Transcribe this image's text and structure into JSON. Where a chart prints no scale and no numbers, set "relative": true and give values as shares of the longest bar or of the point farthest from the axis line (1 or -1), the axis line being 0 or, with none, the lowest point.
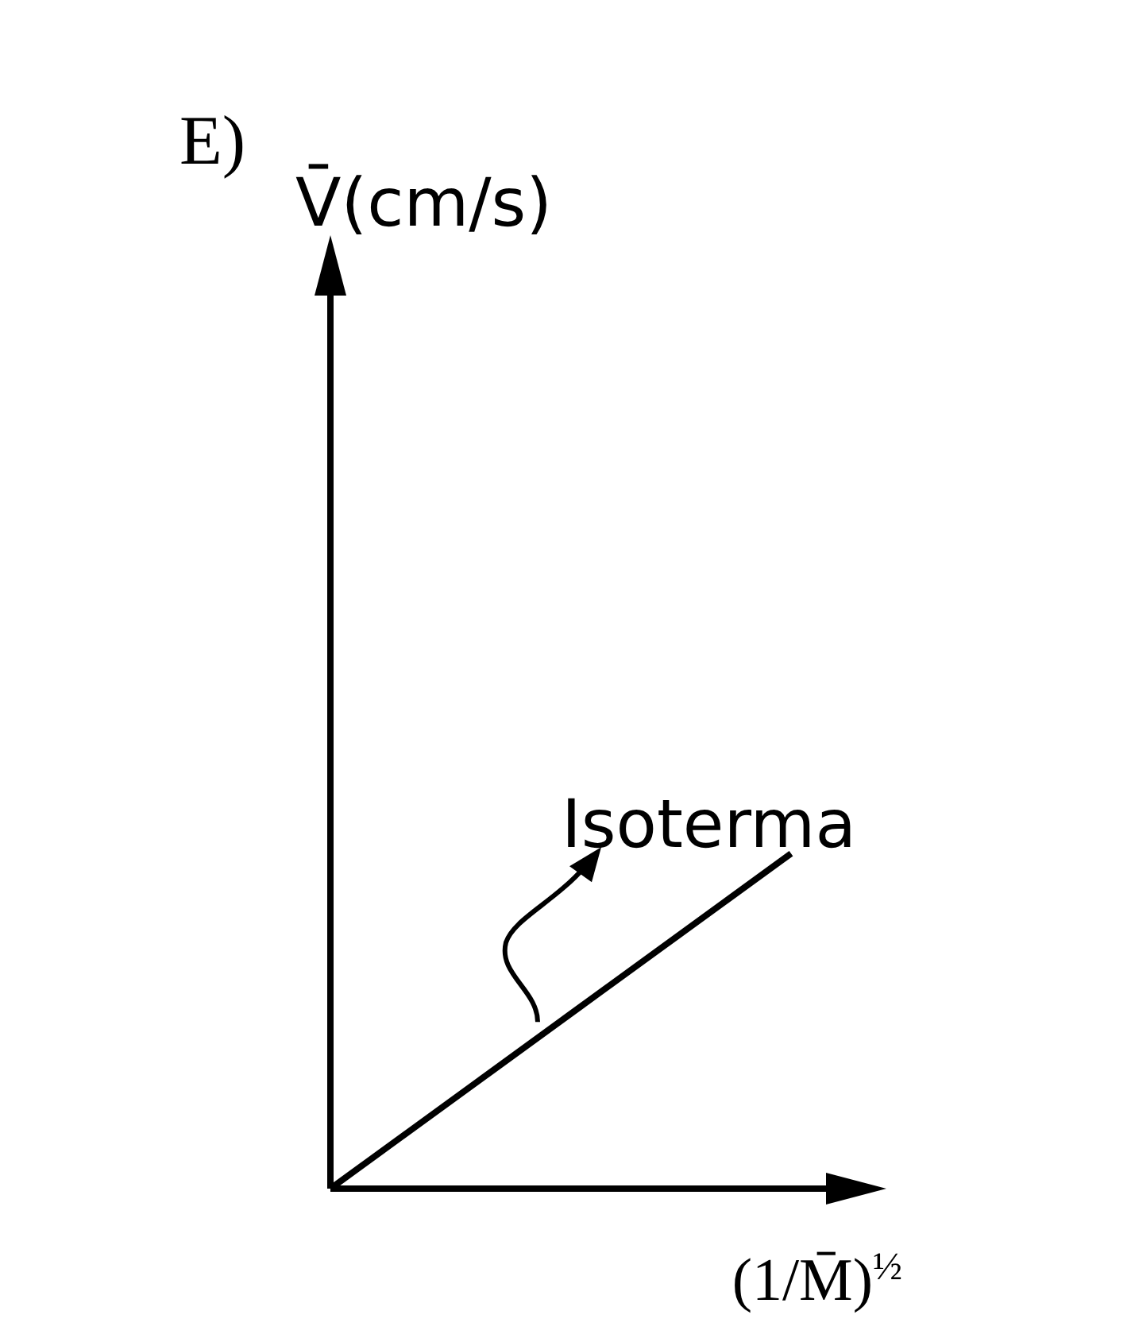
{
  "chart_data": {
    "type": "line",
    "title": "E)",
    "xlabel": "(1/M̄)$^{½}$",
    "categories": [
      null,
      null
    ],
    "values": [
      0,
      1
    ],
    "color": "#000000",
    "relative": true,
    "marker": "none",
    "line_style": "solid",
    "annotations": [
      "V̄(cm/s)",
      "Isoterma"
    ]
  }
}
